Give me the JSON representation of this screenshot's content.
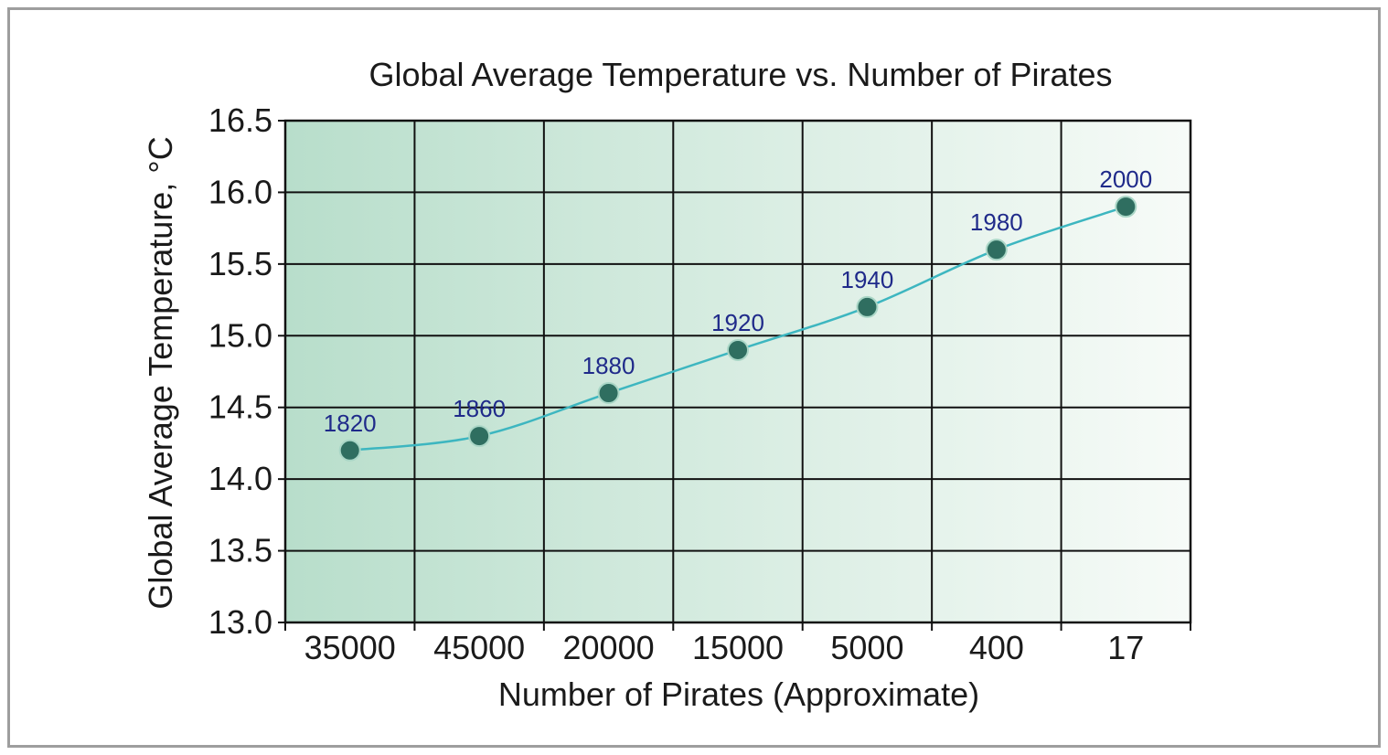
{
  "chart_data": {
    "type": "line",
    "title": "Global Average Temperature vs. Number of Pirates",
    "xlabel": "Number of Pirates (Approximate)",
    "ylabel": "Global Average Temperature, °C",
    "categories": [
      "35000",
      "45000",
      "20000",
      "15000",
      "5000",
      "400",
      "17"
    ],
    "series": [
      {
        "values": [
          14.2,
          14.3,
          14.6,
          14.9,
          15.2,
          15.6,
          15.9
        ],
        "point_labels": [
          "1820",
          "1860",
          "1880",
          "1920",
          "1940",
          "1980",
          "2000"
        ]
      }
    ],
    "yticks": [
      "13.0",
      "13.5",
      "14.0",
      "14.5",
      "15.0",
      "15.5",
      "16.0",
      "16.5"
    ],
    "ylim": [
      13.0,
      16.5
    ],
    "grid": true,
    "colors": {
      "line": "#3db6c0",
      "marker": "#2f6e60",
      "point_label": "#1f2a8a",
      "bg_left": "#b8decb",
      "bg_right": "#f7fbf8"
    }
  }
}
